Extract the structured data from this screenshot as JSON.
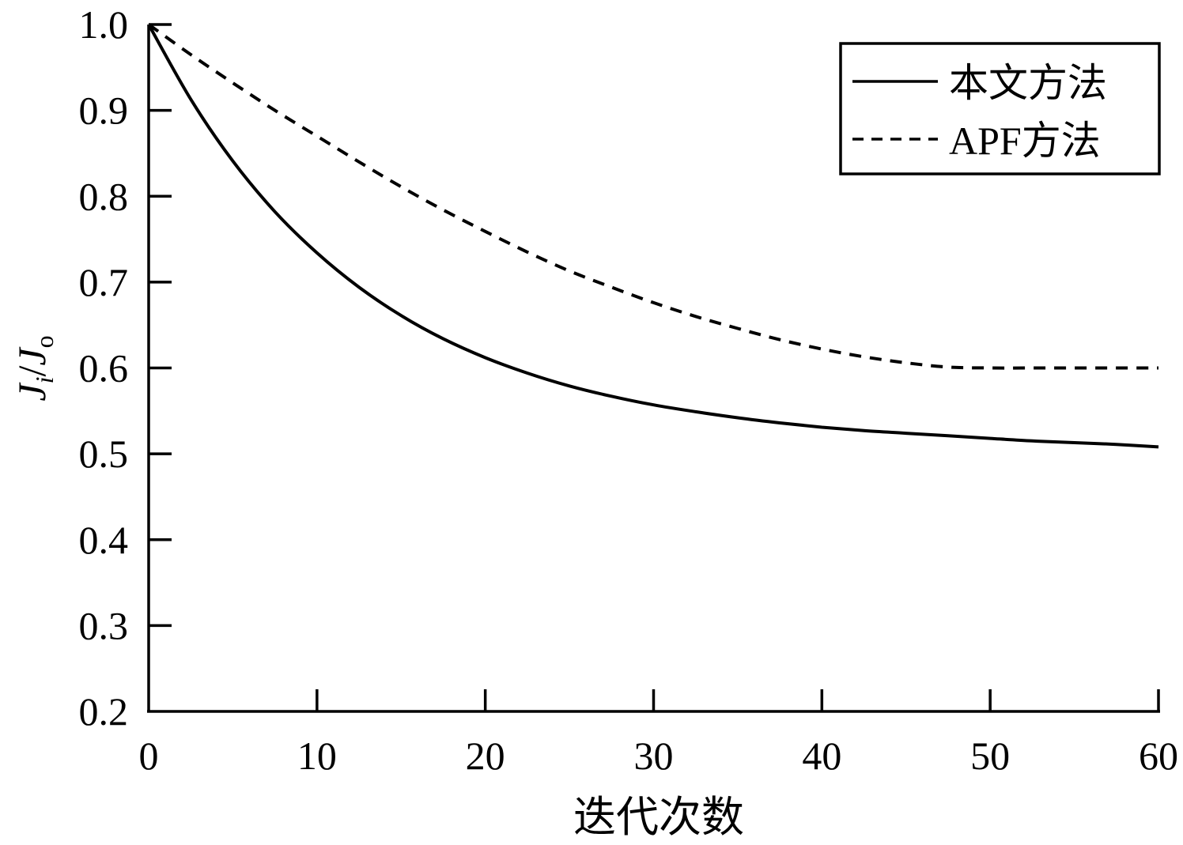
{
  "chart_data": {
    "type": "line",
    "xlabel": "迭代次数",
    "ylabel": {
      "main1": "J",
      "sub1": "i",
      "slash": "/",
      "main2": "J",
      "sub2": "o"
    },
    "xlim": [
      0,
      60
    ],
    "ylim": [
      0.2,
      1.0
    ],
    "xticks": [
      0,
      10,
      20,
      30,
      40,
      50,
      60
    ],
    "xtick_labels": [
      "0",
      "10",
      "20",
      "30",
      "40",
      "50",
      "60"
    ],
    "yticks": [
      0.2,
      0.3,
      0.4,
      0.5,
      0.6,
      0.7,
      0.8,
      0.9,
      1.0
    ],
    "ytick_labels": [
      "0.2",
      "0.3",
      "0.4",
      "0.5",
      "0.6",
      "0.7",
      "0.8",
      "0.9",
      "1.0"
    ],
    "grid": false,
    "legend_position": "top-right",
    "x": [
      0,
      2.5,
      5,
      7.5,
      10,
      12.5,
      15,
      17.5,
      20,
      22.5,
      25,
      27.5,
      30,
      32.5,
      35,
      37.5,
      40,
      42.5,
      45,
      47.5,
      50,
      52.5,
      55,
      57.5,
      60
    ],
    "series": [
      {
        "name": "本文方法",
        "style": "solid",
        "color": "#000000",
        "values": [
          1.0,
          0.913,
          0.841,
          0.782,
          0.734,
          0.694,
          0.661,
          0.634,
          0.612,
          0.594,
          0.579,
          0.567,
          0.557,
          0.549,
          0.542,
          0.536,
          0.531,
          0.527,
          0.524,
          0.521,
          0.518,
          0.515,
          0.513,
          0.511,
          0.508
        ]
      },
      {
        "name": "APF方法",
        "style": "dashed",
        "color": "#000000",
        "values": [
          1.0,
          0.965,
          0.932,
          0.9,
          0.87,
          0.84,
          0.811,
          0.784,
          0.759,
          0.735,
          0.713,
          0.694,
          0.676,
          0.66,
          0.646,
          0.633,
          0.622,
          0.613,
          0.606,
          0.601,
          0.6,
          0.6,
          0.6,
          0.6,
          0.6
        ]
      }
    ]
  }
}
